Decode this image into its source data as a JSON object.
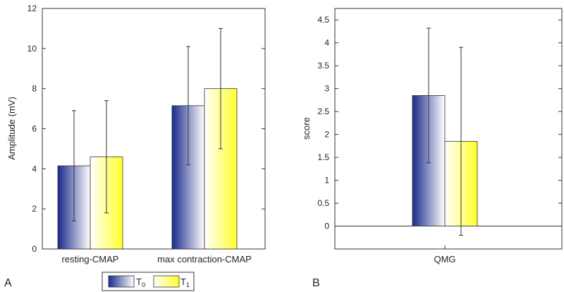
{
  "chart_data": [
    {
      "type": "bar",
      "panel": "A",
      "categories": [
        "resting-CMAP",
        "max contraction-CMAP"
      ],
      "series": [
        {
          "name": "T0",
          "values": [
            4.15,
            7.15
          ],
          "errors": [
            2.75,
            2.95
          ]
        },
        {
          "name": "T1",
          "values": [
            4.6,
            8.0
          ],
          "errors": [
            2.8,
            3.0
          ]
        }
      ],
      "ylabel": "Amplitude (mV)",
      "xlabel": "",
      "ylim": [
        0,
        12
      ],
      "yticks": [
        0,
        2,
        4,
        6,
        8,
        10,
        12
      ]
    },
    {
      "type": "bar",
      "panel": "B",
      "categories": [
        "QMG"
      ],
      "series": [
        {
          "name": "T0",
          "values": [
            2.85
          ],
          "errors": [
            1.47
          ]
        },
        {
          "name": "T1",
          "values": [
            1.85
          ],
          "errors": [
            2.05
          ]
        }
      ],
      "ylabel": "score",
      "xlabel": "",
      "ylim": [
        -0.5,
        4.75
      ],
      "yticks": [
        0,
        0.5,
        1,
        1.5,
        2,
        2.5,
        3,
        3.5,
        4,
        4.5
      ]
    }
  ],
  "legend": {
    "entries": [
      {
        "base": "T",
        "sub": "0"
      },
      {
        "base": "T",
        "sub": "1"
      }
    ]
  },
  "colors": {
    "t0_dark": "#1a2a8c",
    "t0_light": "#ffffff",
    "t1_light": "#ffffff",
    "t1_bright": "#ffff2a"
  }
}
